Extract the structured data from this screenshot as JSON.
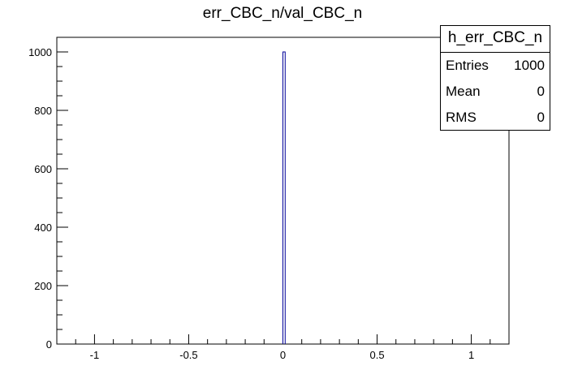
{
  "chart_data": {
    "type": "bar",
    "title": "err_CBC_n/val_CBC_n",
    "xlabel": "",
    "ylabel": "",
    "xlim": [
      -1.2,
      1.2
    ],
    "ylim": [
      0,
      1050
    ],
    "x_ticks": [
      -1,
      -0.5,
      0,
      0.5,
      1
    ],
    "x_tick_labels": [
      "-1",
      "-0.5",
      "0",
      "0.5",
      "1"
    ],
    "y_ticks": [
      0,
      200,
      400,
      600,
      800,
      1000
    ],
    "y_tick_labels": [
      "0",
      "200",
      "400",
      "600",
      "800",
      "1000"
    ],
    "bins": [
      {
        "low": 0.0,
        "high": 0.012,
        "value": 1000
      }
    ],
    "bar_color": "#000099",
    "grid": false,
    "legend": "none"
  },
  "stats_box": {
    "title": "h_err_CBC_n",
    "rows": [
      {
        "label": "Entries",
        "value": "1000"
      },
      {
        "label": "Mean",
        "value": "0"
      },
      {
        "label": "RMS",
        "value": "0"
      }
    ]
  }
}
